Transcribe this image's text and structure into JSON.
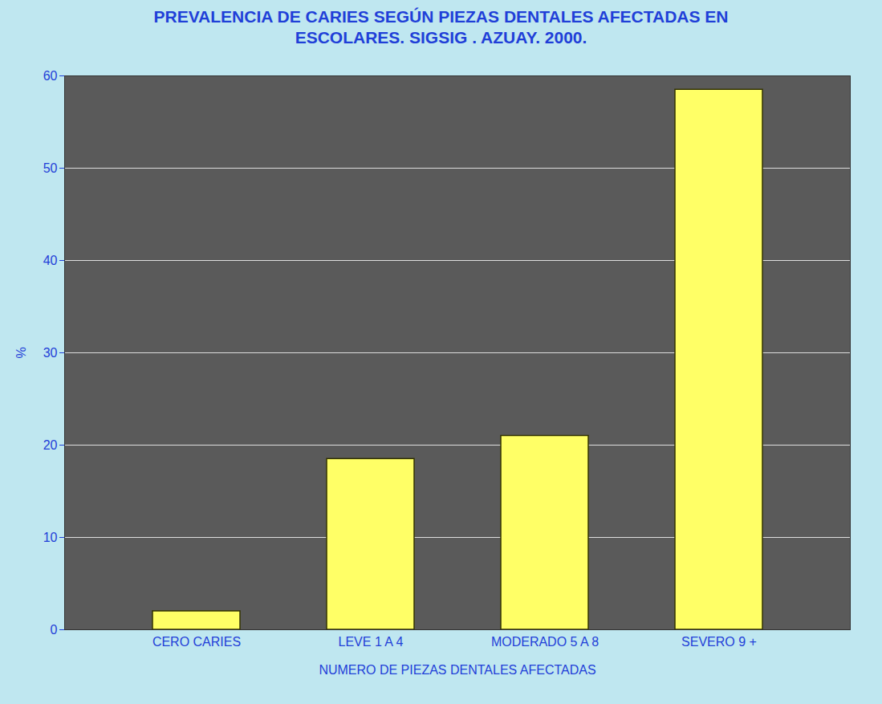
{
  "chart_data": {
    "type": "bar",
    "title": "PREVALENCIA DE CARIES SEGÚN PIEZAS DENTALES AFECTADAS EN ESCOLARES. SIGSIG . AZUAY. 2000.",
    "x_label": "NUMERO DE PIEZAS DENTALES AFECTADAS",
    "y_label": "%",
    "categories": [
      "CERO CARIES",
      "LEVE 1 A 4",
      "MODERADO 5 A 8",
      "SEVERO 9 +"
    ],
    "values": [
      2,
      18.5,
      21,
      58.5
    ],
    "color": "#ffff66",
    "ylim": [
      0,
      60
    ],
    "yticks": [
      0,
      10,
      20,
      30,
      40,
      50,
      60
    ],
    "grid": true
  }
}
